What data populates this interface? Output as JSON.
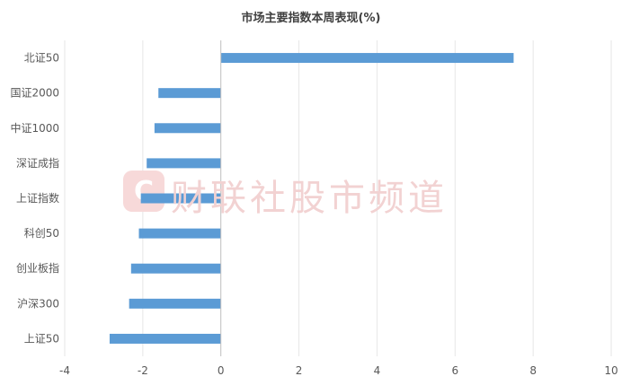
{
  "chart_data": {
    "type": "bar",
    "orientation": "horizontal",
    "title": "市场主要指数本周表现(%)",
    "categories": [
      "北证50",
      "国证2000",
      "中证1000",
      "深证成指",
      "上证指数",
      "科创50",
      "创业板指",
      "沪深300",
      "上证50"
    ],
    "values": [
      7.5,
      -1.6,
      -1.7,
      -1.9,
      -2.05,
      -2.1,
      -2.3,
      -2.35,
      -2.85
    ],
    "xlim": [
      -4,
      10
    ],
    "xticks": [
      "-4",
      "-2",
      "0",
      "2",
      "4",
      "6",
      "8",
      "10"
    ],
    "grid": "vertical",
    "bar_color": "#5b9bd5"
  },
  "watermark": {
    "text": "财联社股市频道",
    "color": "#f2d2d2"
  }
}
